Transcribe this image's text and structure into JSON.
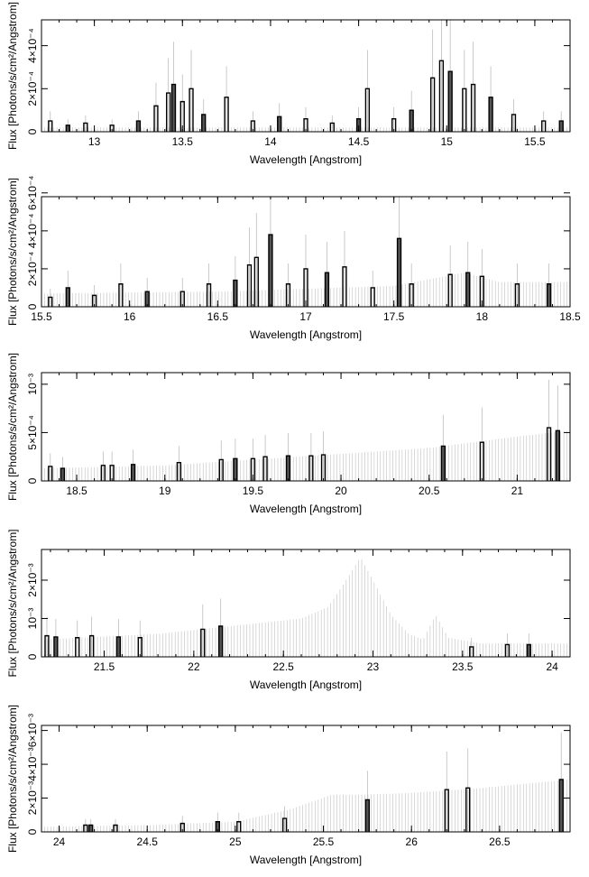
{
  "chart_data": [
    {
      "type": "bar",
      "xlabel": "Wavelength [Angstrom]",
      "ylabel": "Flux [Photons/s/cm²/Angstrom]",
      "xlim": [
        12.7,
        15.7
      ],
      "ylim": [
        0,
        0.00052
      ],
      "xticks": [
        13,
        13.5,
        14,
        14.5,
        15,
        15.5
      ],
      "yticks": [
        {
          "value": 0,
          "label": "0"
        },
        {
          "value": 0.0002,
          "label": "2×10⁻⁴"
        },
        {
          "value": 0.0004,
          "label": "4×10⁻⁴"
        }
      ],
      "background": [
        {
          "x": 12.7,
          "y": 2e-05
        },
        {
          "x": 15.7,
          "y": 2e-05
        }
      ],
      "points": [
        {
          "x": 12.75,
          "y": 5e-05
        },
        {
          "x": 12.85,
          "y": 3e-05
        },
        {
          "x": 12.95,
          "y": 4e-05
        },
        {
          "x": 13.1,
          "y": 3e-05
        },
        {
          "x": 13.25,
          "y": 5e-05
        },
        {
          "x": 13.35,
          "y": 0.00012
        },
        {
          "x": 13.42,
          "y": 0.00018
        },
        {
          "x": 13.45,
          "y": 0.00022
        },
        {
          "x": 13.5,
          "y": 0.00014
        },
        {
          "x": 13.55,
          "y": 0.0002
        },
        {
          "x": 13.62,
          "y": 8e-05
        },
        {
          "x": 13.75,
          "y": 0.00016
        },
        {
          "x": 13.9,
          "y": 5e-05
        },
        {
          "x": 14.05,
          "y": 7e-05
        },
        {
          "x": 14.2,
          "y": 6e-05
        },
        {
          "x": 14.35,
          "y": 4e-05
        },
        {
          "x": 14.5,
          "y": 6e-05
        },
        {
          "x": 14.55,
          "y": 0.0002
        },
        {
          "x": 14.7,
          "y": 6e-05
        },
        {
          "x": 14.8,
          "y": 0.0001
        },
        {
          "x": 14.92,
          "y": 0.00025
        },
        {
          "x": 14.97,
          "y": 0.00033
        },
        {
          "x": 15.02,
          "y": 0.00028
        },
        {
          "x": 15.1,
          "y": 0.0002
        },
        {
          "x": 15.15,
          "y": 0.00022
        },
        {
          "x": 15.25,
          "y": 0.00016
        },
        {
          "x": 15.38,
          "y": 8e-05
        },
        {
          "x": 15.55,
          "y": 5e-05
        },
        {
          "x": 15.65,
          "y": 5e-05
        }
      ]
    },
    {
      "type": "bar",
      "xlabel": "Wavelength [Angstrom]",
      "ylabel": "Flux [Photons/s/cm²/Angstrom]",
      "xlim": [
        15.5,
        18.5
      ],
      "ylim": [
        0,
        0.00058
      ],
      "xticks": [
        15.5,
        16,
        16.5,
        17,
        17.5,
        18,
        18.5
      ],
      "yticks": [
        {
          "value": 0,
          "label": "0"
        },
        {
          "value": 0.0002,
          "label": "2×10⁻⁴"
        },
        {
          "value": 0.0004,
          "label": "4×10⁻⁴"
        },
        {
          "value": 0.0006,
          "label": "6×10⁻⁴"
        }
      ],
      "background": [
        {
          "x": 15.5,
          "y": 7e-05
        },
        {
          "x": 16.5,
          "y": 8e-05
        },
        {
          "x": 17.5,
          "y": 0.00011
        },
        {
          "x": 17.9,
          "y": 0.00018
        },
        {
          "x": 18.1,
          "y": 0.00013
        },
        {
          "x": 18.5,
          "y": 0.00013
        }
      ],
      "points": [
        {
          "x": 15.55,
          "y": 5e-05
        },
        {
          "x": 15.65,
          "y": 0.0001
        },
        {
          "x": 15.8,
          "y": 6e-05
        },
        {
          "x": 15.95,
          "y": 0.00012
        },
        {
          "x": 16.1,
          "y": 8e-05
        },
        {
          "x": 16.3,
          "y": 8e-05
        },
        {
          "x": 16.45,
          "y": 0.00012
        },
        {
          "x": 16.6,
          "y": 0.00014
        },
        {
          "x": 16.68,
          "y": 0.00022
        },
        {
          "x": 16.72,
          "y": 0.00026
        },
        {
          "x": 16.8,
          "y": 0.00038
        },
        {
          "x": 16.9,
          "y": 0.00012
        },
        {
          "x": 17.0,
          "y": 0.0002
        },
        {
          "x": 17.12,
          "y": 0.00018
        },
        {
          "x": 17.22,
          "y": 0.00021
        },
        {
          "x": 17.38,
          "y": 0.0001
        },
        {
          "x": 17.53,
          "y": 0.00036
        },
        {
          "x": 17.6,
          "y": 0.00012
        },
        {
          "x": 17.82,
          "y": 0.00017
        },
        {
          "x": 17.92,
          "y": 0.00018
        },
        {
          "x": 18.0,
          "y": 0.00016
        },
        {
          "x": 18.2,
          "y": 0.00012
        },
        {
          "x": 18.38,
          "y": 0.00012
        }
      ]
    },
    {
      "type": "bar",
      "xlabel": "Wavelength [Angstrom]",
      "ylabel": "Flux [Photons/s/cm²/Angstrom]",
      "xlim": [
        18.3,
        21.3
      ],
      "ylim": [
        0,
        0.00112
      ],
      "xticks": [
        18.5,
        19,
        19.5,
        20,
        20.5,
        21
      ],
      "yticks": [
        {
          "value": 0,
          "label": "0"
        },
        {
          "value": 0.0005,
          "label": "5×10⁻⁴"
        },
        {
          "value": 0.001,
          "label": "10⁻³"
        }
      ],
      "background": [
        {
          "x": 18.3,
          "y": 0.00013
        },
        {
          "x": 19.0,
          "y": 0.00016
        },
        {
          "x": 19.5,
          "y": 0.00022
        },
        {
          "x": 20.0,
          "y": 0.00028
        },
        {
          "x": 20.5,
          "y": 0.00034
        },
        {
          "x": 21.0,
          "y": 0.00046
        },
        {
          "x": 21.3,
          "y": 0.00052
        }
      ],
      "points": [
        {
          "x": 18.35,
          "y": 0.00015
        },
        {
          "x": 18.42,
          "y": 0.00013
        },
        {
          "x": 18.65,
          "y": 0.00016
        },
        {
          "x": 18.7,
          "y": 0.00016
        },
        {
          "x": 18.82,
          "y": 0.00017
        },
        {
          "x": 19.08,
          "y": 0.00019
        },
        {
          "x": 19.32,
          "y": 0.00022
        },
        {
          "x": 19.4,
          "y": 0.00023
        },
        {
          "x": 19.5,
          "y": 0.00023
        },
        {
          "x": 19.57,
          "y": 0.00025
        },
        {
          "x": 19.7,
          "y": 0.00026
        },
        {
          "x": 19.83,
          "y": 0.00026
        },
        {
          "x": 19.9,
          "y": 0.00027
        },
        {
          "x": 20.58,
          "y": 0.00036
        },
        {
          "x": 20.8,
          "y": 0.0004
        },
        {
          "x": 21.18,
          "y": 0.00055
        },
        {
          "x": 21.23,
          "y": 0.00052
        }
      ]
    },
    {
      "type": "bar",
      "xlabel": "Wavelength [Angstrom]",
      "ylabel": "Flux [Photons/s/cm²/Angstrom]",
      "xlim": [
        21.15,
        24.1
      ],
      "ylim": [
        0,
        0.0028
      ],
      "xticks": [
        21.5,
        22,
        22.5,
        23,
        23.5,
        24
      ],
      "yticks": [
        {
          "value": 0,
          "label": "0"
        },
        {
          "value": 0.001,
          "label": "10⁻³"
        },
        {
          "value": 0.002,
          "label": "2×10⁻³"
        }
      ],
      "background": [
        {
          "x": 21.15,
          "y": 0.00045
        },
        {
          "x": 21.8,
          "y": 0.0006
        },
        {
          "x": 22.3,
          "y": 0.00085
        },
        {
          "x": 22.6,
          "y": 0.001
        },
        {
          "x": 22.75,
          "y": 0.0013
        },
        {
          "x": 22.85,
          "y": 0.002
        },
        {
          "x": 22.93,
          "y": 0.0026
        },
        {
          "x": 23.0,
          "y": 0.002
        },
        {
          "x": 23.1,
          "y": 0.0011
        },
        {
          "x": 23.2,
          "y": 0.0006
        },
        {
          "x": 23.28,
          "y": 0.00045
        },
        {
          "x": 23.35,
          "y": 0.0011
        },
        {
          "x": 23.42,
          "y": 0.0005
        },
        {
          "x": 23.6,
          "y": 0.00035
        },
        {
          "x": 24.1,
          "y": 0.00035
        }
      ],
      "points": [
        {
          "x": 21.18,
          "y": 0.00055
        },
        {
          "x": 21.23,
          "y": 0.00052
        },
        {
          "x": 21.35,
          "y": 0.0005
        },
        {
          "x": 21.43,
          "y": 0.00055
        },
        {
          "x": 21.58,
          "y": 0.00052
        },
        {
          "x": 21.7,
          "y": 0.0005
        },
        {
          "x": 22.05,
          "y": 0.00072
        },
        {
          "x": 22.15,
          "y": 0.0008
        },
        {
          "x": 23.55,
          "y": 0.00026
        },
        {
          "x": 23.75,
          "y": 0.00032
        },
        {
          "x": 23.87,
          "y": 0.00032
        }
      ]
    },
    {
      "type": "bar",
      "xlabel": "Wavelength [Angstrom]",
      "ylabel": "Flux [Photons/s/cm²/Angstrom]",
      "xlim": [
        23.9,
        26.9
      ],
      "ylim": [
        0,
        0.0063
      ],
      "xticks": [
        24,
        24.5,
        25,
        25.5,
        26,
        26.5
      ],
      "yticks": [
        {
          "value": 0,
          "label": "0"
        },
        {
          "value": 0.002,
          "label": "2×10⁻³"
        },
        {
          "value": 0.004,
          "label": "4×10⁻³"
        },
        {
          "value": 0.006,
          "label": "6×10⁻³"
        }
      ],
      "background": [
        {
          "x": 23.9,
          "y": 0.0003
        },
        {
          "x": 24.5,
          "y": 0.0004
        },
        {
          "x": 25.0,
          "y": 0.0006
        },
        {
          "x": 25.3,
          "y": 0.0013
        },
        {
          "x": 25.55,
          "y": 0.0022
        },
        {
          "x": 25.7,
          "y": 0.0022
        },
        {
          "x": 26.0,
          "y": 0.0023
        },
        {
          "x": 26.4,
          "y": 0.0026
        },
        {
          "x": 26.9,
          "y": 0.0031
        }
      ],
      "points": [
        {
          "x": 24.15,
          "y": 0.0004
        },
        {
          "x": 24.18,
          "y": 0.0004
        },
        {
          "x": 24.32,
          "y": 0.0004
        },
        {
          "x": 24.7,
          "y": 0.0005
        },
        {
          "x": 24.9,
          "y": 0.0006
        },
        {
          "x": 25.02,
          "y": 0.0006
        },
        {
          "x": 25.28,
          "y": 0.0008
        },
        {
          "x": 25.75,
          "y": 0.0019
        },
        {
          "x": 26.2,
          "y": 0.0025
        },
        {
          "x": 26.32,
          "y": 0.0026
        },
        {
          "x": 26.85,
          "y": 0.0031
        }
      ]
    }
  ]
}
